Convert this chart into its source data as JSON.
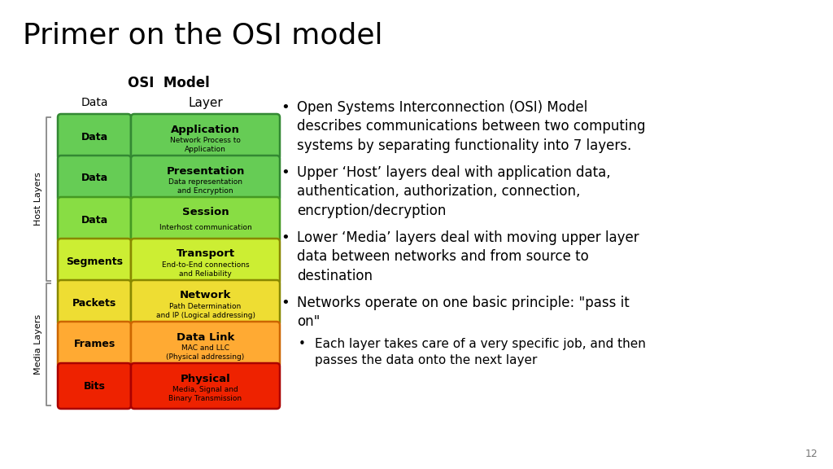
{
  "title": "Primer on the OSI model",
  "title_fontsize": 26,
  "background_color": "#ffffff",
  "osi_title": "OSI  Model",
  "col_headers": [
    "Data",
    "Layer"
  ],
  "layers": [
    {
      "data_label": "Data",
      "layer_name": "Application",
      "layer_desc": "Network Process to\nApplication",
      "color": "#66cc55",
      "border_color": "#338833"
    },
    {
      "data_label": "Data",
      "layer_name": "Presentation",
      "layer_desc": "Data representation\nand Encryption",
      "color": "#66cc55",
      "border_color": "#338833"
    },
    {
      "data_label": "Data",
      "layer_name": "Session",
      "layer_desc": "Interhost communication",
      "color": "#88dd44",
      "border_color": "#449922"
    },
    {
      "data_label": "Segments",
      "layer_name": "Transport",
      "layer_desc": "End-to-End connections\nand Reliability",
      "color": "#ccee33",
      "border_color": "#888800"
    },
    {
      "data_label": "Packets",
      "layer_name": "Network",
      "layer_desc": "Path Determination\nand IP (Logical addressing)",
      "color": "#eedd33",
      "border_color": "#888800"
    },
    {
      "data_label": "Frames",
      "layer_name": "Data Link",
      "layer_desc": "MAC and LLC\n(Physical addressing)",
      "color": "#ffaa33",
      "border_color": "#cc6600"
    },
    {
      "data_label": "Bits",
      "layer_name": "Physical",
      "layer_desc": "Media, Signal and\nBinary Transmission",
      "color": "#ee2200",
      "border_color": "#aa0000"
    }
  ],
  "host_layers_indices": [
    0,
    1,
    2,
    3
  ],
  "media_layers_indices": [
    4,
    5,
    6
  ],
  "bullet_points": [
    "Open Systems Interconnection (OSI) Model\ndescribes communications between two computing\nsystems by separating functionality into 7 layers.",
    "Upper ‘Host’ layers deal with application data,\nauthentication, authorization, connection,\nencryption/decryption",
    "Lower ‘Media’ layers deal with moving upper layer\ndata between networks and from source to\ndestination",
    "Networks operate on one basic principle: \"pass it\non\""
  ],
  "sub_bullet": "Each layer takes care of a very specific job, and then\npasses the data onto the next layer",
  "page_number": "12"
}
